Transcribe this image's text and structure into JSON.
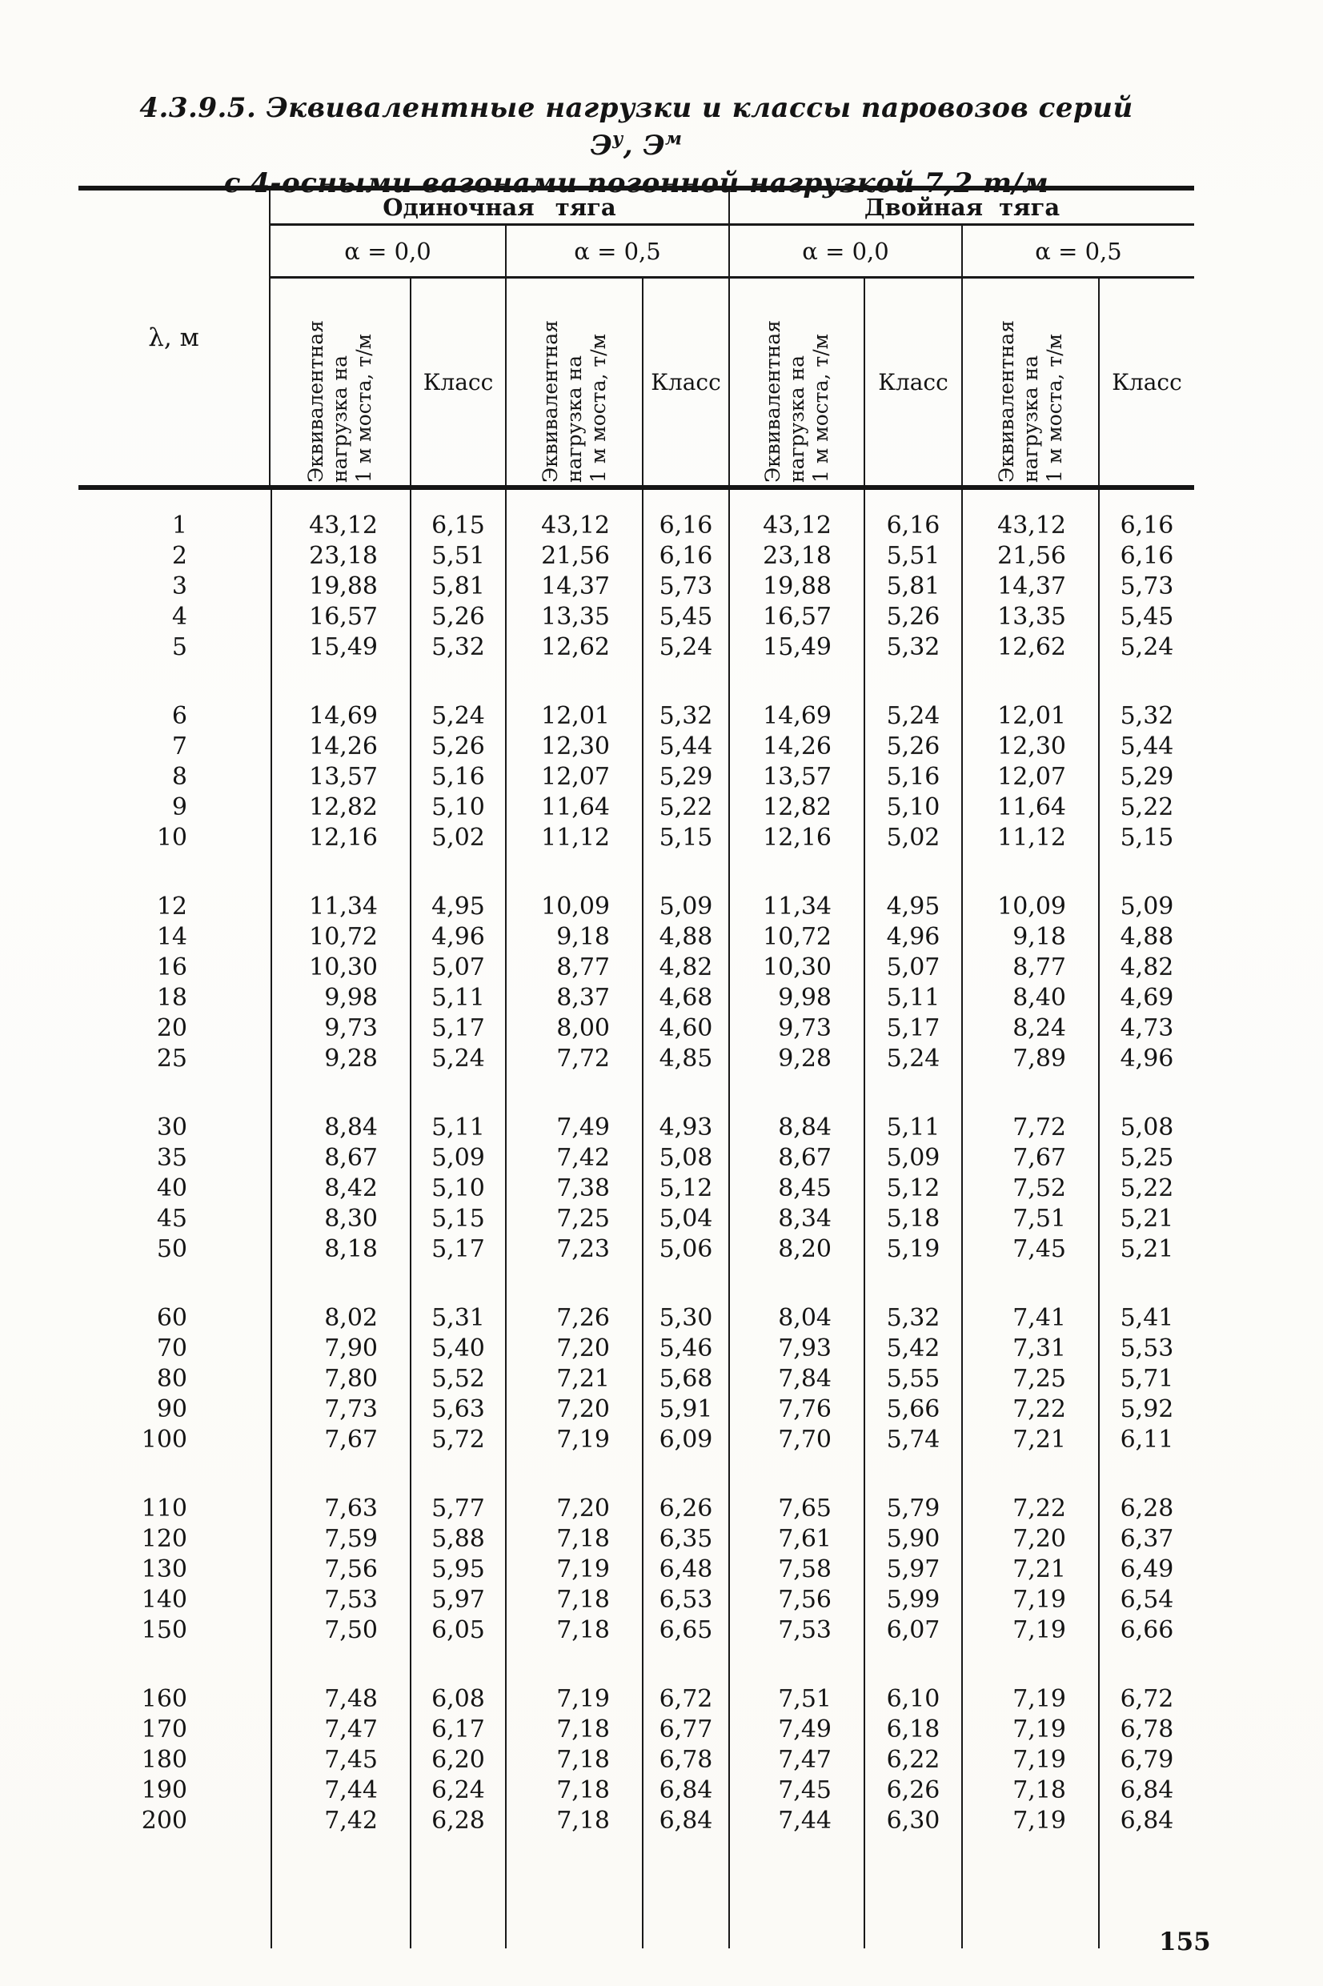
{
  "page": {
    "number": "155"
  },
  "title": {
    "line1_pre": "4.3.9.5. Эквивалентные нагрузки и классы паровозов серий Э",
    "sup1": "у",
    "line1_mid": ", Э",
    "sup2": "м",
    "line2": "с 4-осными вагонами погонной нагрузкой 7,2 т/м"
  },
  "table": {
    "lambda_header": "λ, м",
    "traction_headers": [
      "Одиночная тяга",
      "Двойная тяга"
    ],
    "alpha_headers": [
      "α = 0,0",
      "α = 0,5"
    ],
    "load_header": "Эквивалентная\nнагрузка на\n1 м моста, т/м",
    "class_header": "Класс",
    "row_groups": [
      [
        [
          "1",
          "43,12",
          "6,15",
          "43,12",
          "6,16",
          "43,12",
          "6,16",
          "43,12",
          "6,16"
        ],
        [
          "2",
          "23,18",
          "5,51",
          "21,56",
          "6,16",
          "23,18",
          "5,51",
          "21,56",
          "6,16"
        ],
        [
          "3",
          "19,88",
          "5,81",
          "14,37",
          "5,73",
          "19,88",
          "5,81",
          "14,37",
          "5,73"
        ],
        [
          "4",
          "16,57",
          "5,26",
          "13,35",
          "5,45",
          "16,57",
          "5,26",
          "13,35",
          "5,45"
        ],
        [
          "5",
          "15,49",
          "5,32",
          "12,62",
          "5,24",
          "15,49",
          "5,32",
          "12,62",
          "5,24"
        ]
      ],
      [
        [
          "6",
          "14,69",
          "5,24",
          "12,01",
          "5,32",
          "14,69",
          "5,24",
          "12,01",
          "5,32"
        ],
        [
          "7",
          "14,26",
          "5,26",
          "12,30",
          "5,44",
          "14,26",
          "5,26",
          "12,30",
          "5,44"
        ],
        [
          "8",
          "13,57",
          "5,16",
          "12,07",
          "5,29",
          "13,57",
          "5,16",
          "12,07",
          "5,29"
        ],
        [
          "9",
          "12,82",
          "5,10",
          "11,64",
          "5,22",
          "12,82",
          "5,10",
          "11,64",
          "5,22"
        ],
        [
          "10",
          "12,16",
          "5,02",
          "11,12",
          "5,15",
          "12,16",
          "5,02",
          "11,12",
          "5,15"
        ]
      ],
      [
        [
          "12",
          "11,34",
          "4,95",
          "10,09",
          "5,09",
          "11,34",
          "4,95",
          "10,09",
          "5,09"
        ],
        [
          "14",
          "10,72",
          "4,96",
          "9,18",
          "4,88",
          "10,72",
          "4,96",
          "9,18",
          "4,88"
        ],
        [
          "16",
          "10,30",
          "5,07",
          "8,77",
          "4,82",
          "10,30",
          "5,07",
          "8,77",
          "4,82"
        ],
        [
          "18",
          "9,98",
          "5,11",
          "8,37",
          "4,68",
          "9,98",
          "5,11",
          "8,40",
          "4,69"
        ],
        [
          "20",
          "9,73",
          "5,17",
          "8,00",
          "4,60",
          "9,73",
          "5,17",
          "8,24",
          "4,73"
        ],
        [
          "25",
          "9,28",
          "5,24",
          "7,72",
          "4,85",
          "9,28",
          "5,24",
          "7,89",
          "4,96"
        ]
      ],
      [
        [
          "30",
          "8,84",
          "5,11",
          "7,49",
          "4,93",
          "8,84",
          "5,11",
          "7,72",
          "5,08"
        ],
        [
          "35",
          "8,67",
          "5,09",
          "7,42",
          "5,08",
          "8,67",
          "5,09",
          "7,67",
          "5,25"
        ],
        [
          "40",
          "8,42",
          "5,10",
          "7,38",
          "5,12",
          "8,45",
          "5,12",
          "7,52",
          "5,22"
        ],
        [
          "45",
          "8,30",
          "5,15",
          "7,25",
          "5,04",
          "8,34",
          "5,18",
          "7,51",
          "5,21"
        ],
        [
          "50",
          "8,18",
          "5,17",
          "7,23",
          "5,06",
          "8,20",
          "5,19",
          "7,45",
          "5,21"
        ]
      ],
      [
        [
          "60",
          "8,02",
          "5,31",
          "7,26",
          "5,30",
          "8,04",
          "5,32",
          "7,41",
          "5,41"
        ],
        [
          "70",
          "7,90",
          "5,40",
          "7,20",
          "5,46",
          "7,93",
          "5,42",
          "7,31",
          "5,53"
        ],
        [
          "80",
          "7,80",
          "5,52",
          "7,21",
          "5,68",
          "7,84",
          "5,55",
          "7,25",
          "5,71"
        ],
        [
          "90",
          "7,73",
          "5,63",
          "7,20",
          "5,91",
          "7,76",
          "5,66",
          "7,22",
          "5,92"
        ],
        [
          "100",
          "7,67",
          "5,72",
          "7,19",
          "6,09",
          "7,70",
          "5,74",
          "7,21",
          "6,11"
        ]
      ],
      [
        [
          "110",
          "7,63",
          "5,77",
          "7,20",
          "6,26",
          "7,65",
          "5,79",
          "7,22",
          "6,28"
        ],
        [
          "120",
          "7,59",
          "5,88",
          "7,18",
          "6,35",
          "7,61",
          "5,90",
          "7,20",
          "6,37"
        ],
        [
          "130",
          "7,56",
          "5,95",
          "7,19",
          "6,48",
          "7,58",
          "5,97",
          "7,21",
          "6,49"
        ],
        [
          "140",
          "7,53",
          "5,97",
          "7,18",
          "6,53",
          "7,56",
          "5,99",
          "7,19",
          "6,54"
        ],
        [
          "150",
          "7,50",
          "6,05",
          "7,18",
          "6,65",
          "7,53",
          "6,07",
          "7,19",
          "6,66"
        ]
      ],
      [
        [
          "160",
          "7,48",
          "6,08",
          "7,19",
          "6,72",
          "7,51",
          "6,10",
          "7,19",
          "6,72"
        ],
        [
          "170",
          "7,47",
          "6,17",
          "7,18",
          "6,77",
          "7,49",
          "6,18",
          "7,19",
          "6,78"
        ],
        [
          "180",
          "7,45",
          "6,20",
          "7,18",
          "6,78",
          "7,47",
          "6,22",
          "7,19",
          "6,79"
        ],
        [
          "190",
          "7,44",
          "6,24",
          "7,18",
          "6,84",
          "7,45",
          "6,26",
          "7,18",
          "6,84"
        ],
        [
          "200",
          "7,42",
          "6,28",
          "7,18",
          "6,84",
          "7,44",
          "6,30",
          "7,19",
          "6,84"
        ]
      ]
    ]
  }
}
